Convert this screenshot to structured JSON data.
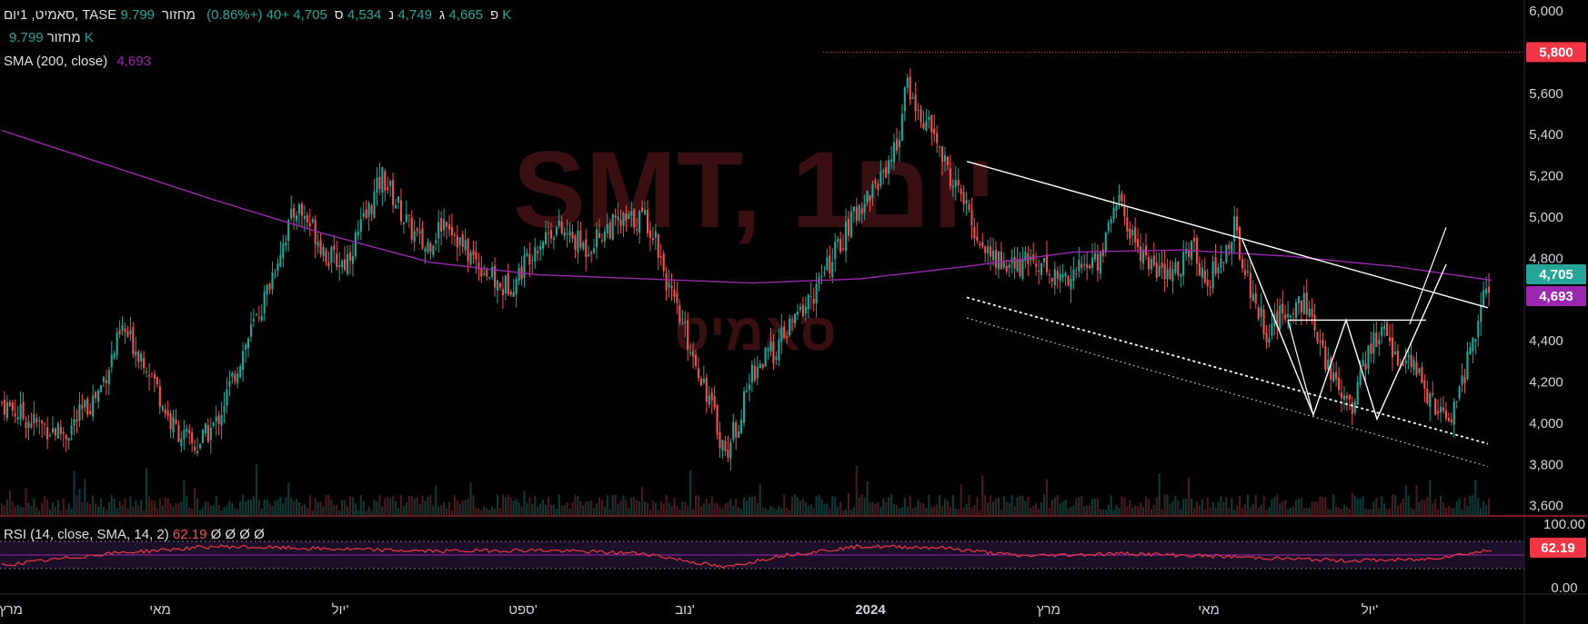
{
  "header": {
    "symbol": "סאמיט, 1יום, TASE",
    "open_label": "פ",
    "open": "4,665",
    "high_label": "ג",
    "high": "4,749",
    "low_label": "נ",
    "low": "4,534",
    "close_label": "ס",
    "close": "4,705",
    "change": "+40 (+0.86%)",
    "volume_label": "מחזור",
    "volume": "9.799 K"
  },
  "volume_row": {
    "label": "מחזור",
    "value": "9.799 K"
  },
  "sma_row": {
    "label": "SMA (200, close)",
    "value": "4,693"
  },
  "rsi_row": {
    "label": "RSI (14, close, SMA, 14, 2)",
    "value": "62.19",
    "extra": "Ø Ø Ø Ø"
  },
  "watermark": {
    "ticker": "SMT, 1יום",
    "name": "סאמיט"
  },
  "colors": {
    "up": "#26a69a",
    "down": "#ef5350",
    "sma": "#9c27b0",
    "rsi": "#f23645",
    "price_badge": "#26a69a",
    "level_badge": "#f23645"
  },
  "chart_data": {
    "type": "candlestick",
    "y_axis": {
      "ticks": [
        "6,000",
        "5,800",
        "5,600",
        "5,400",
        "5,200",
        "5,000",
        "4,800",
        "4,600",
        "4,400",
        "4,200",
        "4,000",
        "3,800",
        "3,600"
      ],
      "range": [
        3550,
        6000
      ]
    },
    "x_axis": {
      "ticks": [
        "מרץ",
        "מאי",
        "יול'",
        "ספט'",
        "נוב'",
        "2024",
        "מרץ",
        "מאי",
        "יול'"
      ]
    },
    "price_badges": {
      "level": "5,800",
      "last": "4,705",
      "sma": "4,693"
    },
    "rsi_axis": {
      "ticks": [
        "100.00",
        "0.00"
      ],
      "badge": "62.19"
    },
    "close_path": [
      [
        0,
        4100
      ],
      [
        12,
        4000
      ],
      [
        24,
        3950
      ],
      [
        36,
        4150
      ],
      [
        45,
        4450
      ],
      [
        54,
        4300
      ],
      [
        63,
        4000
      ],
      [
        72,
        3880
      ],
      [
        80,
        4000
      ],
      [
        90,
        4350
      ],
      [
        98,
        4600
      ],
      [
        104,
        4850
      ],
      [
        110,
        5050
      ],
      [
        116,
        4950
      ],
      [
        122,
        4800
      ],
      [
        128,
        4780
      ],
      [
        136,
        5000
      ],
      [
        142,
        5200
      ],
      [
        148,
        5050
      ],
      [
        152,
        4950
      ],
      [
        158,
        4850
      ],
      [
        166,
        5000
      ],
      [
        172,
        4850
      ],
      [
        180,
        4750
      ],
      [
        186,
        4650
      ],
      [
        192,
        4700
      ],
      [
        198,
        4850
      ],
      [
        206,
        4950
      ],
      [
        212,
        4900
      ],
      [
        218,
        4850
      ],
      [
        226,
        4950
      ],
      [
        234,
        4980
      ],
      [
        240,
        5000
      ],
      [
        244,
        4900
      ],
      [
        250,
        4600
      ],
      [
        256,
        4400
      ],
      [
        262,
        4200
      ],
      [
        270,
        3850
      ],
      [
        276,
        4050
      ],
      [
        280,
        4250
      ],
      [
        288,
        4350
      ],
      [
        296,
        4500
      ],
      [
        304,
        4650
      ],
      [
        312,
        4850
      ],
      [
        320,
        5050
      ],
      [
        326,
        5150
      ],
      [
        334,
        5350
      ],
      [
        338,
        5650
      ],
      [
        342,
        5500
      ],
      [
        348,
        5400
      ],
      [
        352,
        5250
      ],
      [
        358,
        5100
      ],
      [
        364,
        4900
      ],
      [
        370,
        4800
      ],
      [
        378,
        4750
      ],
      [
        386,
        4800
      ],
      [
        394,
        4700
      ],
      [
        402,
        4750
      ],
      [
        410,
        4800
      ],
      [
        416,
        5100
      ],
      [
        422,
        4900
      ],
      [
        430,
        4750
      ],
      [
        436,
        4700
      ],
      [
        444,
        4850
      ],
      [
        450,
        4700
      ],
      [
        456,
        4800
      ],
      [
        460,
        4950
      ],
      [
        466,
        4650
      ],
      [
        472,
        4450
      ],
      [
        480,
        4550
      ],
      [
        486,
        4600
      ],
      [
        492,
        4350
      ],
      [
        498,
        4200
      ],
      [
        504,
        4100
      ],
      [
        510,
        4350
      ],
      [
        516,
        4450
      ],
      [
        522,
        4300
      ],
      [
        528,
        4250
      ],
      [
        534,
        4100
      ],
      [
        540,
        4000
      ],
      [
        546,
        4250
      ],
      [
        552,
        4550
      ],
      [
        556,
        4705
      ]
    ],
    "sma_path": [
      [
        0,
        5420
      ],
      [
        40,
        5250
      ],
      [
        80,
        5080
      ],
      [
        120,
        4920
      ],
      [
        160,
        4780
      ],
      [
        200,
        4720
      ],
      [
        240,
        4700
      ],
      [
        280,
        4680
      ],
      [
        320,
        4700
      ],
      [
        360,
        4760
      ],
      [
        400,
        4830
      ],
      [
        440,
        4840
      ],
      [
        480,
        4810
      ],
      [
        520,
        4760
      ],
      [
        556,
        4693
      ]
    ],
    "rsi_path": [
      [
        0,
        30
      ],
      [
        40,
        55
      ],
      [
        80,
        70
      ],
      [
        120,
        65
      ],
      [
        160,
        60
      ],
      [
        200,
        62
      ],
      [
        240,
        55
      ],
      [
        270,
        25
      ],
      [
        290,
        50
      ],
      [
        320,
        70
      ],
      [
        350,
        68
      ],
      [
        380,
        50
      ],
      [
        420,
        55
      ],
      [
        460,
        48
      ],
      [
        500,
        40
      ],
      [
        530,
        42
      ],
      [
        556,
        62
      ]
    ]
  }
}
